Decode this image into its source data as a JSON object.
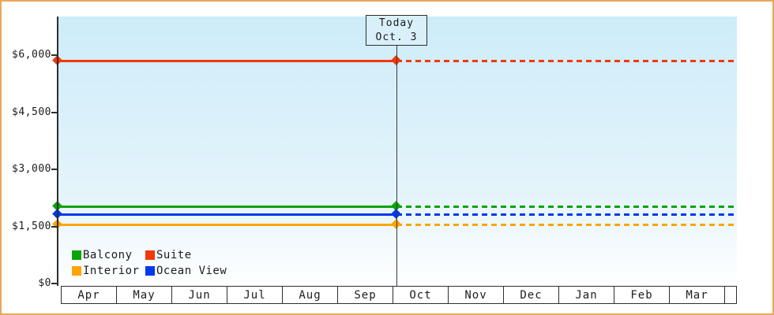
{
  "frame": {
    "border_color": "#E9A75B",
    "background_color": "#ffffff",
    "plot_top_color": "#cdecf9"
  },
  "chart_data": {
    "type": "line",
    "title": "",
    "xlabel": "",
    "ylabel": "",
    "ylim": [
      0,
      7000
    ],
    "grid": false,
    "legend_position": "bottom-left-inside",
    "months": [
      "Apr",
      "May",
      "Jun",
      "Jul",
      "Aug",
      "Sep",
      "Oct",
      "Nov",
      "Dec",
      "Jan",
      "Feb",
      "Mar"
    ],
    "y_ticks": [
      {
        "label": "$0",
        "value": 0
      },
      {
        "label": "$1,500",
        "value": 1500
      },
      {
        "label": "$3,000",
        "value": 3000
      },
      {
        "label": "$4,500",
        "value": 4500
      },
      {
        "label": "$6,000",
        "value": 6000
      }
    ],
    "today_label": [
      "Today",
      "Oct. 3"
    ],
    "today_month": "Oct",
    "today_day": 3,
    "note": "Each series is a flat price line: solid from Apr to today (Oct. 3), dotted projection from today to end of Mar.",
    "series": [
      {
        "name": "Balcony",
        "color": "#0CA30C",
        "value": 2025
      },
      {
        "name": "Suite",
        "color": "#F23808",
        "value": 5855
      },
      {
        "name": "Interior",
        "color": "#FDA402",
        "value": 1555
      },
      {
        "name": "Ocean View",
        "color": "#0238EE",
        "value": 1820
      }
    ]
  }
}
